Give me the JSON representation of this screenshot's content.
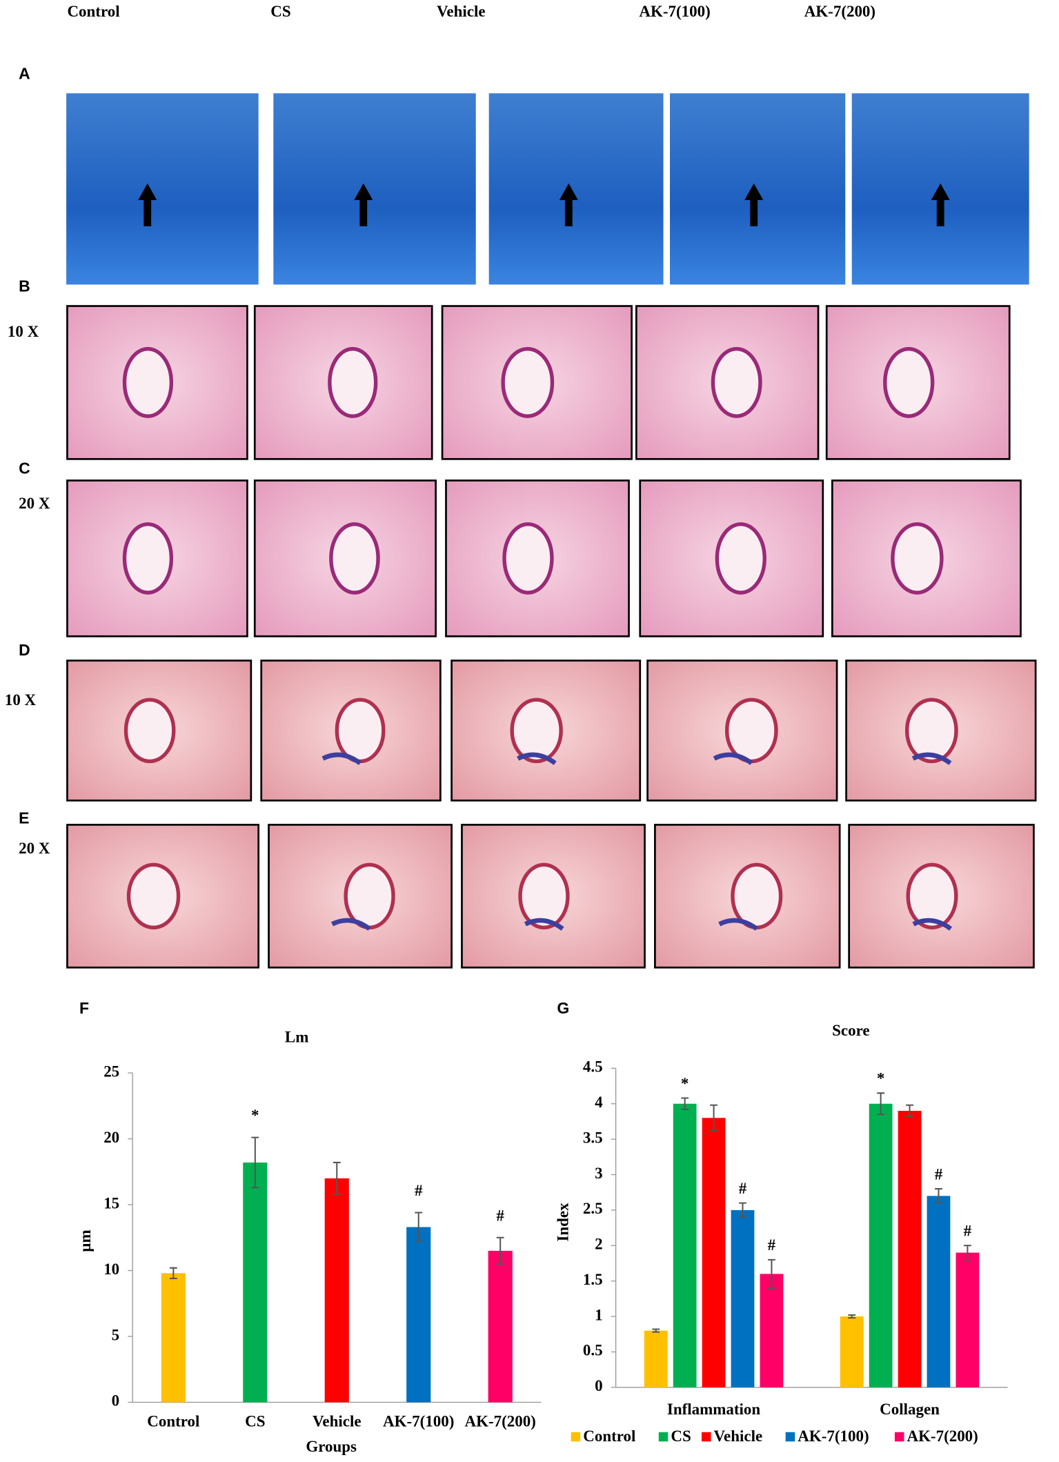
{
  "column_headers": [
    "Control",
    "CS",
    "Vehicle",
    "AK-7(100)",
    "AK-7(200)"
  ],
  "panel_labels": [
    "A",
    "B",
    "C",
    "D",
    "E",
    "F",
    "G"
  ],
  "magnifications": [
    "10 X",
    "20 X",
    "10 X",
    "20 X"
  ],
  "chart_data": [
    {
      "type": "bar",
      "title": "Lm",
      "x_label": "Groups",
      "y_label": "µm",
      "categories": [
        "Control",
        "CS",
        "Vehicle",
        "AK-7(100)",
        "AK-7(200)"
      ],
      "values": [
        9.8,
        18.2,
        17.0,
        13.3,
        11.5
      ],
      "errors": [
        0.4,
        1.9,
        1.2,
        1.1,
        1.0
      ],
      "annotations": [
        null,
        "*",
        null,
        "#",
        "#"
      ],
      "colors": [
        "#ffc000",
        "#00b050",
        "#ff0000",
        "#0070c0",
        "#ff0066"
      ],
      "ylim": [
        0,
        25
      ],
      "yticks": [
        0,
        5,
        10,
        15,
        20,
        25
      ],
      "grid": false
    },
    {
      "type": "grouped_bar",
      "title": "Score",
      "y_label": "Index",
      "categories": [
        "Inflammation",
        "Collagen"
      ],
      "series": [
        {
          "name": "Control",
          "color": "#ffc000",
          "values": [
            0.8,
            1.0
          ],
          "errors": [
            0.02,
            0.02
          ],
          "annotations": [
            null,
            null
          ]
        },
        {
          "name": "CS",
          "color": "#00b050",
          "values": [
            4.0,
            4.0
          ],
          "errors": [
            0.08,
            0.15
          ],
          "annotations": [
            "*",
            "*"
          ]
        },
        {
          "name": "Vehicle",
          "color": "#ff0000",
          "values": [
            3.8,
            3.9
          ],
          "errors": [
            0.18,
            0.08
          ],
          "annotations": [
            null,
            null
          ]
        },
        {
          "name": "AK-7(100)",
          "color": "#0070c0",
          "values": [
            2.5,
            2.7
          ],
          "errors": [
            0.1,
            0.1
          ],
          "annotations": [
            "#",
            "#"
          ]
        },
        {
          "name": "AK-7(200)",
          "color": "#ff0066",
          "values": [
            1.6,
            1.9
          ],
          "errors": [
            0.2,
            0.1
          ],
          "annotations": [
            "#",
            "#"
          ]
        }
      ],
      "ylim": [
        0,
        4.5
      ],
      "yticks": [
        0,
        0.5,
        1,
        1.5,
        2,
        2.5,
        3,
        3.5,
        4,
        4.5
      ],
      "legend": "bottom",
      "grid": false
    }
  ]
}
